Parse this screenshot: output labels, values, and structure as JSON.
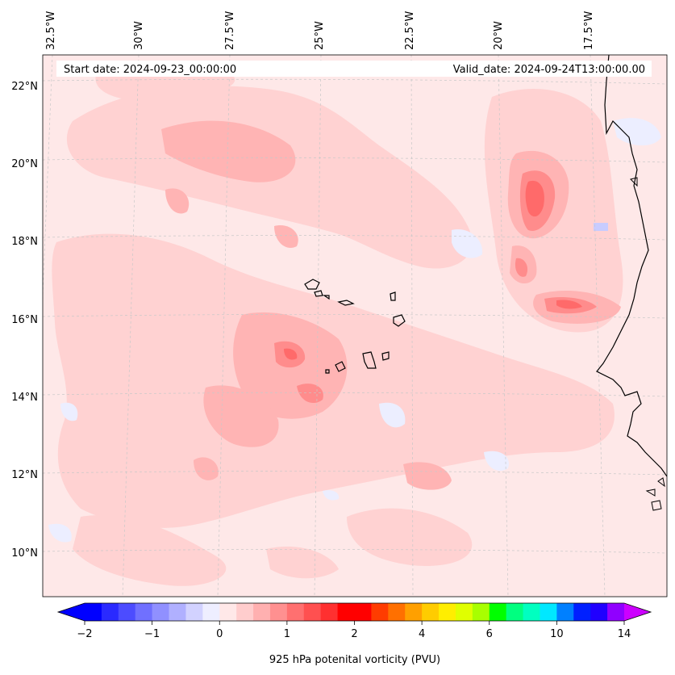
{
  "header": {
    "start_date": "Start date: 2024-09-23_00:00:00",
    "valid_date": "Valid_date: 2024-09-24T13:00:00.00"
  },
  "map": {
    "lon_labels": [
      "32.5°W",
      "30°W",
      "27.5°W",
      "25°W",
      "22.5°W",
      "20°W",
      "17.5°W"
    ],
    "lat_labels": [
      "22°N",
      "20°N",
      "18°N",
      "16°N",
      "14°N",
      "12°N",
      "10°N"
    ],
    "background_color": "#fee8e8"
  },
  "colorbar": {
    "label": "925 hPa potenital vorticity (PVU)",
    "tick_labels": [
      "−2",
      "−1",
      "0",
      "1",
      "2",
      "4",
      "6",
      "10",
      "14"
    ],
    "colors": [
      "#0000ff",
      "#2a2aff",
      "#4c4cff",
      "#7070ff",
      "#9090ff",
      "#b0b0ff",
      "#d2d2ff",
      "#eeeeff",
      "#ffe8e8",
      "#ffcdcd",
      "#ffb0b0",
      "#ff9090",
      "#ff7070",
      "#ff5050",
      "#ff3030",
      "#ff0000",
      "#ff0000",
      "#ff3c00",
      "#ff7000",
      "#ffa000",
      "#ffcc00",
      "#ffee00",
      "#e0ff00",
      "#a8ff00",
      "#00ff00",
      "#00ff80",
      "#00ffc0",
      "#00e8ff",
      "#0080ff",
      "#0020ff",
      "#2000ff",
      "#9000ff"
    ],
    "min_color": "#0000ff",
    "max_color": "#cc00ff"
  }
}
